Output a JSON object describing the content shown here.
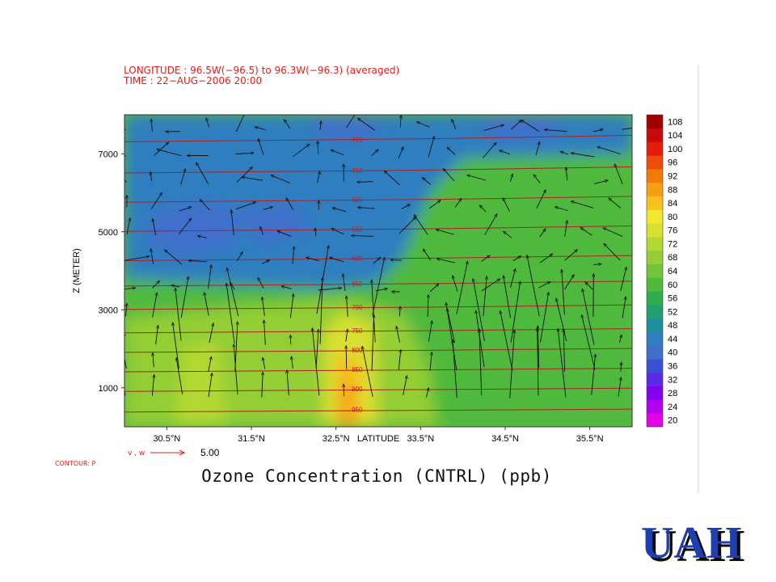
{
  "header": {
    "line1": "LONGITUDE : 96.5W(−96.5) to 96.3W(−96.3) (averaged)",
    "line2": "TIME : 22−AUG−2006 20:00"
  },
  "footer": {
    "vector_label": "v , w",
    "vector_scale": "5.00",
    "contour_label": "CONTOUR: P",
    "title": "Ozone Concentration (CNTRL) (ppb)",
    "logo_text": "UAH"
  },
  "colors": {
    "header_red": "#e0201a",
    "pressure_line": "#b02020",
    "arrow": "#101010",
    "logo_blue": "#1f3fb0"
  },
  "chart_data": {
    "type": "heatmap",
    "title": "Ozone Concentration (CNTRL) (ppb)",
    "xlabel": "LATITUDE",
    "ylabel": "Z (METER)",
    "xlim": [
      30.0,
      36.0
    ],
    "ylim": [
      0,
      8000
    ],
    "x_ticks": [
      30.5,
      31.5,
      32.5,
      33.5,
      34.5,
      35.5
    ],
    "x_tick_labels": [
      "30.5°N",
      "31.5°N",
      "32.5°N",
      "33.5°N",
      "34.5°N",
      "35.5°N"
    ],
    "y_ticks": [
      1000,
      3000,
      5000,
      7000
    ],
    "y_tick_labels": [
      "1000",
      "3000",
      "5000",
      "7000"
    ],
    "colorbar": {
      "levels": [
        20,
        24,
        28,
        32,
        36,
        40,
        44,
        48,
        52,
        56,
        60,
        64,
        68,
        72,
        76,
        80,
        84,
        88,
        92,
        96,
        100,
        104,
        108
      ],
      "colors": [
        "#e600e6",
        "#b400f0",
        "#8200f0",
        "#5a2ae6",
        "#3a4fd6",
        "#3f6fcb",
        "#2f7ec0",
        "#1e8f9a",
        "#20a070",
        "#2fad4a",
        "#50b93c",
        "#72c53a",
        "#93ce36",
        "#b4d833",
        "#d8e030",
        "#f2e82e",
        "#f5c21f",
        "#f59f12",
        "#f27a0c",
        "#ee4c0a",
        "#e61c0a",
        "#c80a0a",
        "#a00000"
      ],
      "labels": [
        "20",
        "24",
        "28",
        "32",
        "36",
        "40",
        "44",
        "48",
        "52",
        "56",
        "60",
        "64",
        "68",
        "72",
        "76",
        "80",
        "84",
        "88",
        "92",
        "96",
        "100",
        "104",
        "108"
      ]
    },
    "pressure_contours": [
      {
        "label": "400",
        "z": 7350
      },
      {
        "label": "450",
        "z": 6550
      },
      {
        "label": "500",
        "z": 5800
      },
      {
        "label": "550",
        "z": 5050
      },
      {
        "label": "600",
        "z": 4300
      },
      {
        "label": "650",
        "z": 3650
      },
      {
        "label": "700",
        "z": 3050
      },
      {
        "label": "750",
        "z": 2450
      },
      {
        "label": "800",
        "z": 1950
      },
      {
        "label": "850",
        "z": 1450
      },
      {
        "label": "900",
        "z": 950
      },
      {
        "label": "950",
        "z": 420
      }
    ],
    "ozone_regions": [
      {
        "level": 44,
        "poly": [
          [
            30.0,
            8000
          ],
          [
            36.0,
            8000
          ],
          [
            36.0,
            6800
          ],
          [
            34.0,
            6900
          ],
          [
            33.6,
            6000
          ],
          [
            33.3,
            4400
          ],
          [
            33.0,
            3700
          ],
          [
            32.4,
            3550
          ],
          [
            31.2,
            3650
          ],
          [
            30.0,
            3800
          ]
        ]
      },
      {
        "level": 40,
        "poly": [
          [
            30.3,
            5500
          ],
          [
            30.8,
            5800
          ],
          [
            31.4,
            5600
          ],
          [
            31.3,
            4700
          ],
          [
            30.7,
            4300
          ],
          [
            30.3,
            4700
          ]
        ]
      },
      {
        "level": 40,
        "poly": [
          [
            31.3,
            5600
          ],
          [
            32.0,
            5700
          ],
          [
            32.2,
            5000
          ],
          [
            31.6,
            4700
          ]
        ]
      },
      {
        "level": 40,
        "poly": [
          [
            32.2,
            8000
          ],
          [
            33.2,
            8000
          ],
          [
            32.8,
            7300
          ],
          [
            32.3,
            7400
          ]
        ]
      },
      {
        "level": 40,
        "poly": [
          [
            34.2,
            8000
          ],
          [
            35.2,
            8000
          ],
          [
            35.0,
            7300
          ],
          [
            34.3,
            7400
          ]
        ]
      },
      {
        "level": 60,
        "poly": [
          [
            30.0,
            0
          ],
          [
            36.0,
            0
          ],
          [
            36.0,
            7000
          ],
          [
            34.0,
            6900
          ],
          [
            33.6,
            6000
          ],
          [
            33.3,
            4400
          ],
          [
            33.0,
            3700
          ],
          [
            32.4,
            3550
          ],
          [
            31.2,
            3650
          ],
          [
            30.0,
            3800
          ]
        ]
      },
      {
        "level": 68,
        "poly": [
          [
            30.0,
            0
          ],
          [
            33.7,
            0
          ],
          [
            33.6,
            1500
          ],
          [
            33.3,
            2900
          ],
          [
            32.6,
            3300
          ],
          [
            31.3,
            3100
          ],
          [
            30.0,
            2800
          ]
        ]
      },
      {
        "level": 72,
        "poly": [
          [
            30.6,
            0
          ],
          [
            31.2,
            0
          ],
          [
            31.1,
            2200
          ],
          [
            30.7,
            2000
          ]
        ]
      },
      {
        "level": 76,
        "poly": [
          [
            32.35,
            0
          ],
          [
            33.0,
            0
          ],
          [
            32.95,
            2600
          ],
          [
            32.6,
            2950
          ],
          [
            32.35,
            2400
          ]
        ]
      },
      {
        "level": 84,
        "poly": [
          [
            32.5,
            0
          ],
          [
            32.8,
            0
          ],
          [
            32.78,
            1800
          ],
          [
            32.5,
            1850
          ]
        ]
      },
      {
        "level": 88,
        "poly": [
          [
            32.55,
            0
          ],
          [
            32.7,
            0
          ],
          [
            32.7,
            1200
          ],
          [
            32.55,
            1250
          ]
        ]
      }
    ]
  }
}
